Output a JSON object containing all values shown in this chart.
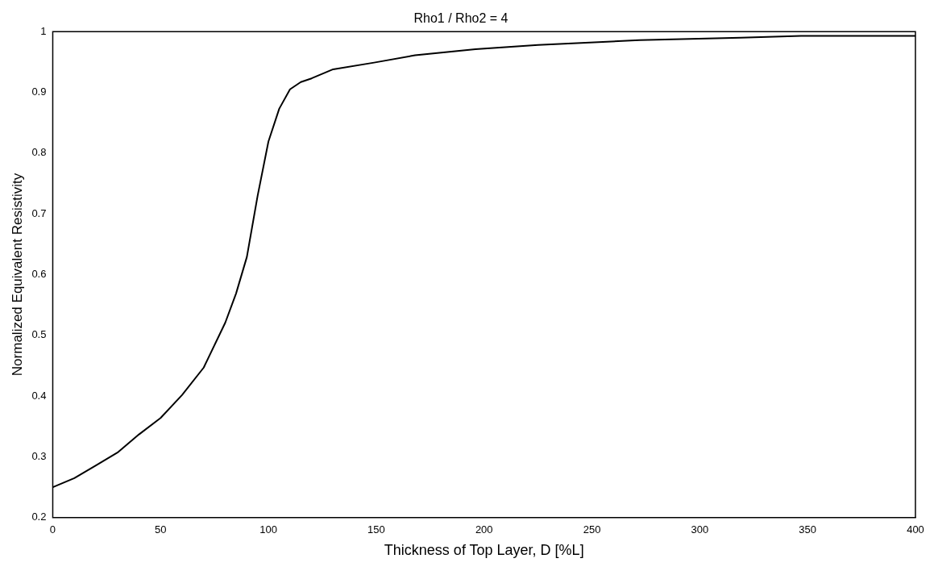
{
  "chart_data": {
    "type": "line",
    "title": "Rho1 / Rho2 = 4",
    "xlabel": "Thickness of Top Layer, D [%L]",
    "ylabel": "Normalized Equivalent Resistivity",
    "x": [
      0,
      10,
      20,
      30,
      40,
      50,
      60,
      70,
      80,
      85,
      90,
      95,
      100,
      105,
      110,
      115,
      120,
      130,
      149,
      168,
      196,
      225,
      272,
      319,
      347,
      400
    ],
    "series": [
      {
        "color": "#000000",
        "values": [
          0.25,
          0.265,
          0.286,
          0.307,
          0.337,
          0.364,
          0.402,
          0.447,
          0.521,
          0.569,
          0.629,
          0.73,
          0.819,
          0.873,
          0.905,
          0.917,
          0.923,
          0.938,
          0.949,
          0.961,
          0.971,
          0.978,
          0.986,
          0.99,
          0.993,
          0.993
        ]
      }
    ],
    "xlim": [
      0,
      400
    ],
    "xticks": [
      0,
      50,
      100,
      150,
      200,
      250,
      300,
      350,
      400
    ],
    "ylim": [
      0.2,
      1
    ],
    "yticks": [
      0.2,
      0.3,
      0.4,
      0.5,
      0.6,
      0.7,
      0.8,
      0.9,
      1
    ],
    "grid": false,
    "legend": false,
    "marker": "none",
    "line_style": "solid"
  }
}
